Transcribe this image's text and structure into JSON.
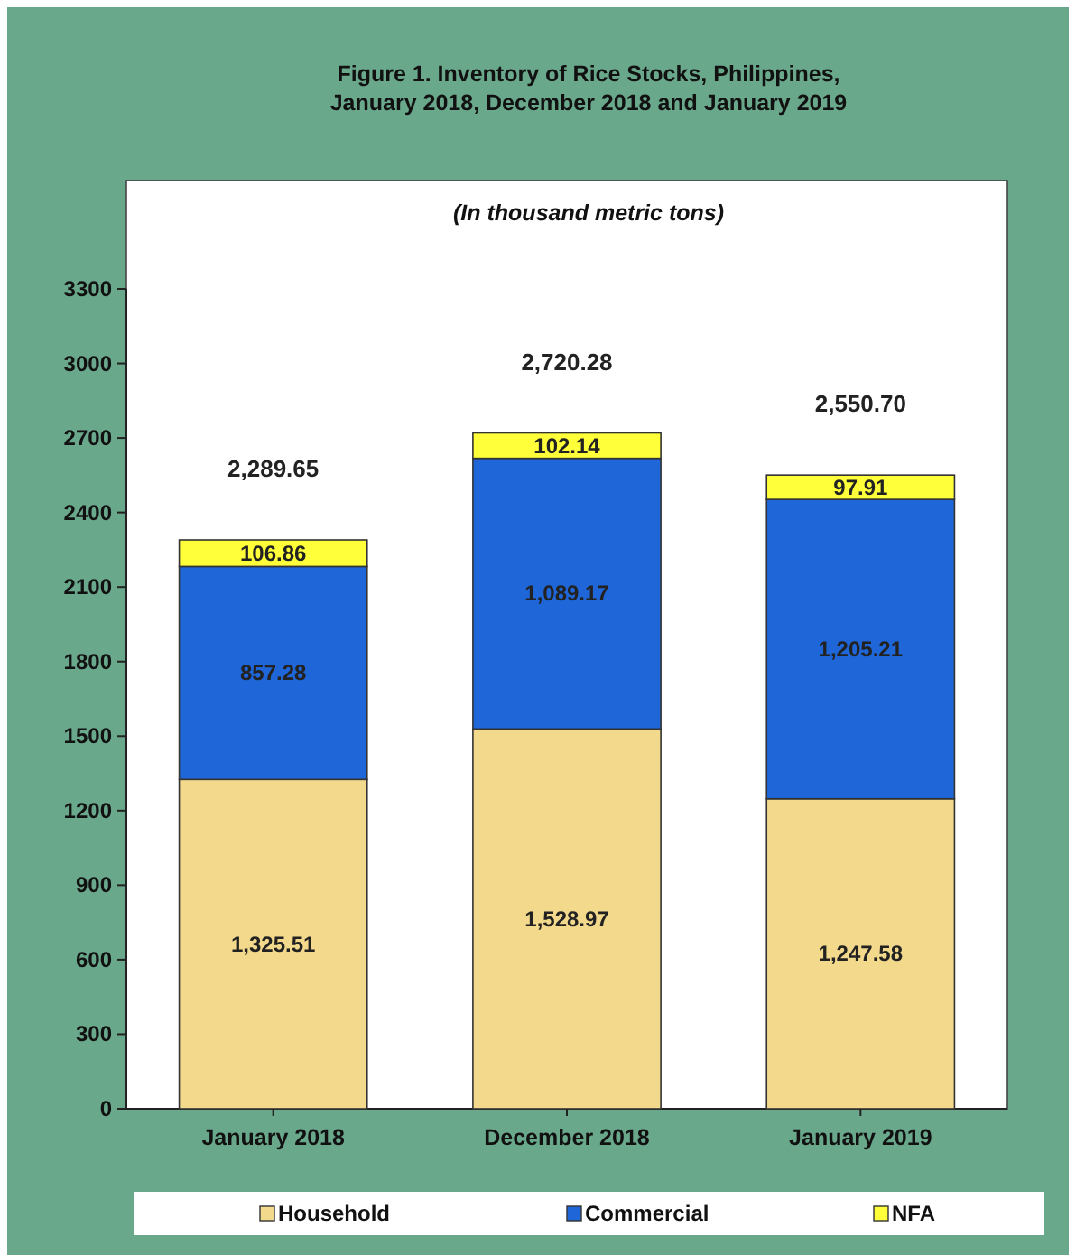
{
  "chart_data": {
    "type": "bar",
    "title": "Figure 1. Inventory of Rice Stocks, Philippines,\nJanuary 2018, December 2018 and January 2019",
    "subtitle": "(In thousand metric tons)",
    "categories": [
      "January 2018",
      "December 2018",
      "January 2019"
    ],
    "stacked": true,
    "series": [
      {
        "name": "Household",
        "color": "#f3d98c",
        "values": [
          1325.51,
          1528.97,
          1247.58
        ],
        "value_labels": [
          "1,325.51",
          "1,528.97",
          "1,247.58"
        ]
      },
      {
        "name": "Commercial",
        "color": "#1f66d8",
        "values": [
          857.28,
          1089.17,
          1205.21
        ],
        "value_labels": [
          "857.28",
          "1,089.17",
          "1,205.21"
        ]
      },
      {
        "name": "NFA",
        "color": "#ffff3a",
        "values": [
          106.86,
          102.14,
          97.91
        ],
        "value_labels": [
          "106.86",
          "102.14",
          "97.91"
        ]
      }
    ],
    "totals": [
      "2,289.65",
      "2,720.28",
      "2,550.70"
    ],
    "ylim": [
      0,
      3300
    ],
    "yticks": [
      0,
      300,
      600,
      900,
      1200,
      1500,
      1800,
      2100,
      2400,
      2700,
      3000,
      3300
    ],
    "grid": false,
    "legend": "bottom"
  }
}
